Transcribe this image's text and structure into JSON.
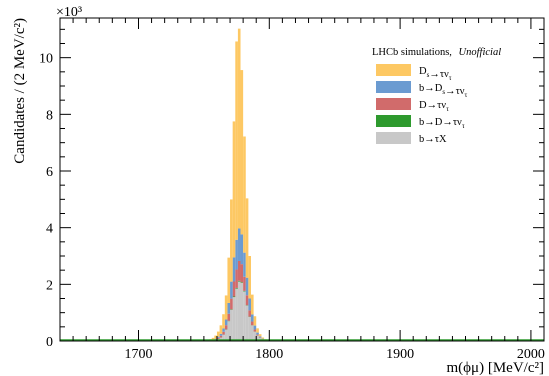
{
  "chart_data": {
    "type": "area",
    "xlabel": "m(ϕμ) [MeV/c²]",
    "ylabel": "Candidates / (2 MeV/c²)",
    "y_multiplier": "×10³",
    "xlim": [
      1640,
      2010
    ],
    "ylim": [
      0,
      11400
    ],
    "x_ticks": [
      1700,
      1800,
      1900,
      2000
    ],
    "y_ticks": [
      0,
      2000,
      4000,
      6000,
      8000,
      10000
    ],
    "y_tick_labels": [
      "0",
      "2",
      "4",
      "6",
      "8",
      "10"
    ],
    "stacked": true,
    "bin_width": 2,
    "x": [
      1750,
      1752,
      1754,
      1756,
      1758,
      1760,
      1762,
      1764,
      1766,
      1768,
      1770,
      1772,
      1774,
      1776,
      1778,
      1780,
      1782,
      1784,
      1786,
      1788,
      1790,
      1792,
      1794,
      1796,
      1798,
      1800,
      1802,
      1804
    ],
    "series": [
      {
        "name": "b→τX",
        "color": "#c8c8c8",
        "values": [
          0,
          5,
          10,
          20,
          40,
          70,
          120,
          220,
          400,
          700,
          1100,
          1550,
          1850,
          2100,
          2050,
          1750,
          1250,
          850,
          550,
          330,
          190,
          110,
          60,
          30,
          15,
          8,
          4,
          0
        ]
      },
      {
        "name": "b→D→τν_τ",
        "color": "#2e9a2e",
        "values": [
          0,
          0,
          0,
          0,
          1,
          2,
          3,
          5,
          8,
          12,
          16,
          20,
          22,
          24,
          22,
          18,
          14,
          10,
          7,
          4,
          2,
          1,
          1,
          0,
          0,
          0,
          0,
          0
        ]
      },
      {
        "name": "D→τν_τ",
        "color": "#d16b6b",
        "values": [
          0,
          0,
          5,
          10,
          20,
          40,
          60,
          100,
          150,
          250,
          380,
          530,
          650,
          700,
          640,
          500,
          350,
          220,
          130,
          70,
          35,
          15,
          8,
          4,
          2,
          0,
          0,
          0
        ]
      },
      {
        "name": "b→D_s→τν_τ",
        "color": "#6b9bd1",
        "values": [
          0,
          2,
          5,
          10,
          20,
          40,
          70,
          120,
          200,
          380,
          600,
          850,
          1050,
          1150,
          1050,
          850,
          620,
          420,
          250,
          140,
          70,
          35,
          15,
          7,
          3,
          1,
          0,
          0
        ]
      },
      {
        "name": "D_s→τν_τ",
        "color": "#fdc863",
        "values": [
          10,
          20,
          40,
          70,
          110,
          180,
          300,
          500,
          850,
          1600,
          2900,
          4800,
          7000,
          7050,
          5800,
          4100,
          2800,
          1500,
          700,
          330,
          150,
          80,
          40,
          20,
          10,
          6,
          3,
          0
        ]
      }
    ],
    "legend": {
      "title": "LHCb simulations,",
      "title_italic": "Unofficial",
      "placement": "top-right",
      "entries": [
        {
          "main": "D",
          "sub": "s",
          "rest": "→τν",
          "sub2": "τ",
          "color": "#fdc863"
        },
        {
          "main": "b→D",
          "sub": "s",
          "rest": "→τν",
          "sub2": "τ",
          "color": "#6b9bd1"
        },
        {
          "main": "D→τν",
          "sub": "τ",
          "rest": "",
          "sub2": "",
          "color": "#d16b6b"
        },
        {
          "main": "b→D→τν",
          "sub": "τ",
          "rest": "",
          "sub2": "",
          "color": "#2e9a2e"
        },
        {
          "main": "b→τX",
          "sub": "",
          "rest": "",
          "sub2": "",
          "color": "#c8c8c8"
        }
      ]
    }
  }
}
